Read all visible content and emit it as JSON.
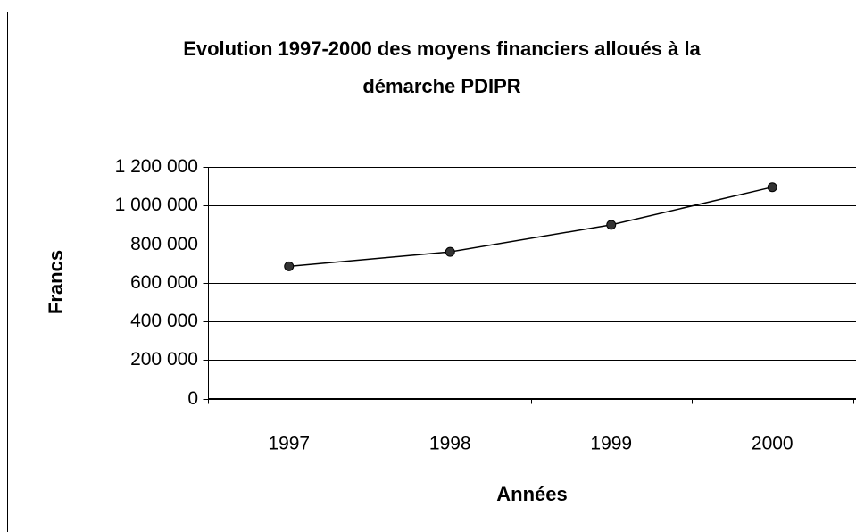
{
  "chart_data": {
    "type": "line",
    "title": [
      "Evolution 1997-2000 des moyens financiers alloués à la",
      "démarche PDIPR"
    ],
    "x_label": "Années",
    "y_label": "Francs",
    "categories": [
      "1997",
      "1998",
      "1999",
      "2000"
    ],
    "series": [
      {
        "name": "Francs",
        "color": "#000000",
        "values": [
          685000,
          760000,
          900000,
          1095000
        ]
      }
    ],
    "ylim": [
      0,
      1200000
    ],
    "yticks": [
      0,
      {
        "value": 200000,
        "label": "200 000"
      },
      {
        "value": 400000,
        "label": "400 000"
      },
      {
        "value": 600000,
        "label": "600 000"
      },
      {
        "value": 800000,
        "label": "800 000"
      },
      {
        "value": 1000000,
        "label": "1 000 000"
      },
      {
        "value": 1200000,
        "label": "1 200 000"
      }
    ],
    "grid": true,
    "legend": false
  }
}
